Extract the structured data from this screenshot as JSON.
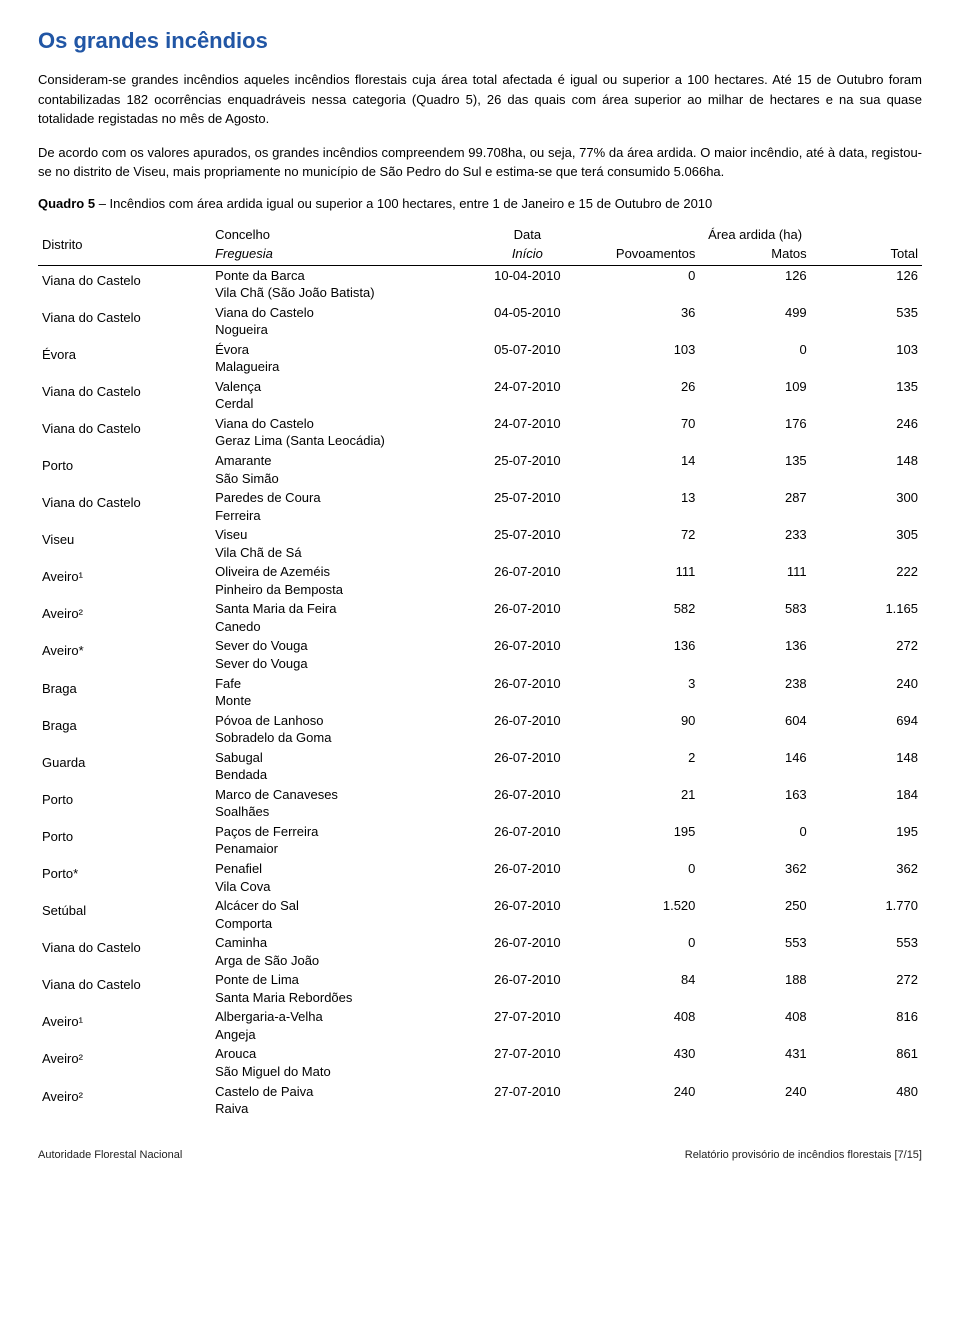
{
  "title": "Os grandes incêndios",
  "title_color": "#2156a5",
  "paragraphs": [
    "Consideram-se grandes incêndios aqueles incêndios florestais cuja área total afectada é igual ou superior a 100 hectares. Até 15 de Outubro foram contabilizadas 182 ocorrências enquadráveis nessa categoria (Quadro 5), 26 das quais com área superior ao milhar de hectares e na sua quase totalidade registadas no mês de Agosto.",
    "De acordo com os valores apurados, os grandes incêndios compreendem 99.708ha, ou seja, 77% da área ardida. O maior incêndio, até à data, registou-se no distrito de Viseu, mais propriamente no município de São Pedro do Sul e estima-se que terá consumido 5.066ha."
  ],
  "quadro_label": "Quadro 5",
  "quadro_text": " – Incêndios com área ardida igual ou superior a 100 hectares, entre 1 de Janeiro e 15 de Outubro de 2010",
  "headers": {
    "distrito": "Distrito",
    "concelho": "Concelho",
    "freguesia": "Freguesia",
    "data": "Data",
    "inicio": "Início",
    "area_group": "Área ardida (ha)",
    "povoamentos": "Povoamentos",
    "matos": "Matos",
    "total": "Total"
  },
  "rows": [
    {
      "distrito": "Viana do Castelo",
      "concelho": "Ponte da Barca",
      "freguesia": "Vila Chã (São João Batista)",
      "data": "10-04-2010",
      "pov": "0",
      "matos": "126",
      "total": "126"
    },
    {
      "distrito": "Viana do Castelo",
      "concelho": "Viana do Castelo",
      "freguesia": "Nogueira",
      "data": "04-05-2010",
      "pov": "36",
      "matos": "499",
      "total": "535"
    },
    {
      "distrito": "Évora",
      "concelho": "Évora",
      "freguesia": "Malagueira",
      "data": "05-07-2010",
      "pov": "103",
      "matos": "0",
      "total": "103"
    },
    {
      "distrito": "Viana do Castelo",
      "concelho": "Valença",
      "freguesia": "Cerdal",
      "data": "24-07-2010",
      "pov": "26",
      "matos": "109",
      "total": "135"
    },
    {
      "distrito": "Viana do Castelo",
      "concelho": "Viana do Castelo",
      "freguesia": "Geraz Lima (Santa Leocádia)",
      "data": "24-07-2010",
      "pov": "70",
      "matos": "176",
      "total": "246"
    },
    {
      "distrito": "Porto",
      "concelho": "Amarante",
      "freguesia": "São Simão",
      "data": "25-07-2010",
      "pov": "14",
      "matos": "135",
      "total": "148"
    },
    {
      "distrito": "Viana do Castelo",
      "concelho": "Paredes de Coura",
      "freguesia": "Ferreira",
      "data": "25-07-2010",
      "pov": "13",
      "matos": "287",
      "total": "300"
    },
    {
      "distrito": "Viseu",
      "concelho": "Viseu",
      "freguesia": "Vila Chã de Sá",
      "data": "25-07-2010",
      "pov": "72",
      "matos": "233",
      "total": "305"
    },
    {
      "distrito": "Aveiro¹",
      "concelho": "Oliveira de Azeméis",
      "freguesia": "Pinheiro da Bemposta",
      "data": "26-07-2010",
      "pov": "111",
      "matos": "111",
      "total": "222"
    },
    {
      "distrito": "Aveiro²",
      "concelho": "Santa Maria da Feira",
      "freguesia": "Canedo",
      "data": "26-07-2010",
      "pov": "582",
      "matos": "583",
      "total": "1.165"
    },
    {
      "distrito": "Aveiro*",
      "concelho": "Sever do Vouga",
      "freguesia": "Sever do Vouga",
      "data": "26-07-2010",
      "pov": "136",
      "matos": "136",
      "total": "272"
    },
    {
      "distrito": "Braga",
      "concelho": "Fafe",
      "freguesia": "Monte",
      "data": "26-07-2010",
      "pov": "3",
      "matos": "238",
      "total": "240"
    },
    {
      "distrito": "Braga",
      "concelho": "Póvoa de Lanhoso",
      "freguesia": "Sobradelo da Goma",
      "data": "26-07-2010",
      "pov": "90",
      "matos": "604",
      "total": "694"
    },
    {
      "distrito": "Guarda",
      "concelho": "Sabugal",
      "freguesia": "Bendada",
      "data": "26-07-2010",
      "pov": "2",
      "matos": "146",
      "total": "148"
    },
    {
      "distrito": "Porto",
      "concelho": "Marco de Canaveses",
      "freguesia": "Soalhães",
      "data": "26-07-2010",
      "pov": "21",
      "matos": "163",
      "total": "184"
    },
    {
      "distrito": "Porto",
      "concelho": "Paços de Ferreira",
      "freguesia": "Penamaior",
      "data": "26-07-2010",
      "pov": "195",
      "matos": "0",
      "total": "195"
    },
    {
      "distrito": "Porto*",
      "concelho": "Penafiel",
      "freguesia": "Vila Cova",
      "data": "26-07-2010",
      "pov": "0",
      "matos": "362",
      "total": "362"
    },
    {
      "distrito": "Setúbal",
      "concelho": "Alcácer do Sal",
      "freguesia": "Comporta",
      "data": "26-07-2010",
      "pov": "1.520",
      "matos": "250",
      "total": "1.770"
    },
    {
      "distrito": "Viana do Castelo",
      "concelho": "Caminha",
      "freguesia": "Arga de São João",
      "data": "26-07-2010",
      "pov": "0",
      "matos": "553",
      "total": "553"
    },
    {
      "distrito": "Viana do Castelo",
      "concelho": "Ponte de Lima",
      "freguesia": "Santa Maria Rebordões",
      "data": "26-07-2010",
      "pov": "84",
      "matos": "188",
      "total": "272"
    },
    {
      "distrito": "Aveiro¹",
      "concelho": "Albergaria-a-Velha",
      "freguesia": "Angeja",
      "data": "27-07-2010",
      "pov": "408",
      "matos": "408",
      "total": "816"
    },
    {
      "distrito": "Aveiro²",
      "concelho": "Arouca",
      "freguesia": "São Miguel do Mato",
      "data": "27-07-2010",
      "pov": "430",
      "matos": "431",
      "total": "861"
    },
    {
      "distrito": "Aveiro²",
      "concelho": "Castelo de Paiva",
      "freguesia": "Raiva",
      "data": "27-07-2010",
      "pov": "240",
      "matos": "240",
      "total": "480"
    }
  ],
  "footer_left": "Autoridade Florestal Nacional",
  "footer_right": "Relatório provisório de incêndios florestais [7/15]"
}
